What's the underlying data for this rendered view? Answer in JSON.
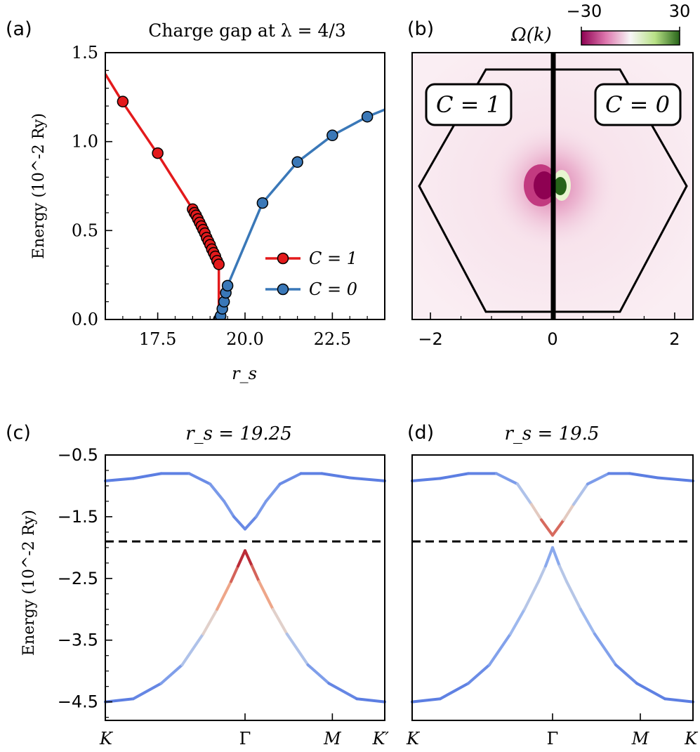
{
  "figure": {
    "panel_labels": [
      "(a)",
      "(b)",
      "(c)",
      "(d)"
    ]
  },
  "chart_data": [
    {
      "panel": "(a)",
      "type": "line",
      "title": "Charge gap at λ = 4/3",
      "xlabel": "r_s",
      "ylabel": "Energy (10^-2 Ry)",
      "xlim": [
        16.0,
        24.0
      ],
      "ylim": [
        0.0,
        1.5
      ],
      "xticks": [
        "17.5",
        "20.0",
        "22.5"
      ],
      "xtick_values": [
        17.5,
        20.0,
        22.5
      ],
      "yticks": [
        "0.0",
        "0.5",
        "1.0",
        "1.5"
      ],
      "ytick_values": [
        0.0,
        0.5,
        1.0,
        1.5
      ],
      "legend": {
        "placement": "lower-right",
        "entries": [
          "C = 1",
          "C = 0"
        ]
      },
      "series": [
        {
          "name": "C = 1",
          "color": "#e31a1c",
          "line_x": [
            16.0,
            16.5,
            17.5,
            18.5,
            19.2,
            19.25,
            19.25
          ],
          "line_y": [
            1.38,
            1.22,
            0.93,
            0.62,
            0.31,
            0.29,
            0.0
          ],
          "points_x": [
            16.5,
            17.5,
            18.5,
            18.55,
            18.6,
            18.65,
            18.7,
            18.75,
            18.8,
            18.85,
            18.9,
            18.95,
            19.0,
            19.05,
            19.1,
            19.15,
            19.2,
            19.25
          ],
          "points_y": [
            1.225,
            0.935,
            0.62,
            0.6,
            0.585,
            0.565,
            0.545,
            0.525,
            0.505,
            0.485,
            0.46,
            0.44,
            0.42,
            0.395,
            0.375,
            0.355,
            0.33,
            0.31
          ]
        },
        {
          "name": "C = 0",
          "color": "#3a78b8",
          "line_x": [
            19.25,
            19.3,
            19.35,
            19.4,
            19.45,
            19.5,
            20.5,
            21.5,
            22.5,
            23.5,
            24.0
          ],
          "line_y": [
            0.0,
            0.02,
            0.06,
            0.1,
            0.15,
            0.19,
            0.655,
            0.885,
            1.035,
            1.14,
            1.18
          ],
          "points_x": [
            19.25,
            19.27,
            19.3,
            19.35,
            19.4,
            19.45,
            19.5,
            20.5,
            21.5,
            22.5,
            23.5
          ],
          "points_y": [
            0.0,
            0.005,
            0.02,
            0.06,
            0.1,
            0.15,
            0.19,
            0.655,
            0.885,
            1.035,
            1.14
          ]
        }
      ]
    },
    {
      "panel": "(b)",
      "type": "heatmap",
      "quantity": "Ω(k)",
      "colorbar": {
        "min": -30,
        "max": 30,
        "ticks": [
          "−30",
          "30"
        ],
        "colormap": "PiYG"
      },
      "xlim": [
        -2.3,
        2.3
      ],
      "ylim": [
        -2.3,
        2.3
      ],
      "xticks": [
        "−2",
        "0",
        "2"
      ],
      "xtick_values": [
        -2,
        0,
        2
      ],
      "annotations": [
        "C = 1",
        "C = 0"
      ],
      "brillouin_zone": "hexagon",
      "divider": "vertical line at k_x = 0"
    },
    {
      "panel": "(c)",
      "type": "line",
      "title": "r_s = 19.25",
      "ylabel": "Energy (10^-2 Ry)",
      "ylim": [
        -4.8,
        -0.5
      ],
      "yticks": [
        "−0.5",
        "−1.5",
        "−2.5",
        "−3.5",
        "−4.5"
      ],
      "ytick_values": [
        -0.5,
        -1.5,
        -2.5,
        -3.5,
        -4.5
      ],
      "path_labels": [
        "K",
        "Γ",
        "M",
        "K′"
      ],
      "path_positions": [
        0.0,
        1.0,
        1.625,
        2.0
      ],
      "fermi_level": -1.9,
      "bands": [
        {
          "name": "conduction",
          "k": [
            0.0,
            0.2,
            0.4,
            0.6,
            0.75,
            0.85,
            0.92,
            1.0,
            1.08,
            1.15,
            1.25,
            1.4,
            1.55,
            1.75,
            2.0
          ],
          "E": [
            -0.92,
            -0.88,
            -0.8,
            -0.8,
            -0.97,
            -1.25,
            -1.5,
            -1.7,
            -1.5,
            -1.25,
            -0.97,
            -0.8,
            -0.8,
            -0.87,
            -0.92
          ],
          "color_values": [
            -1,
            -1,
            -1,
            -0.95,
            -0.8,
            -0.7,
            -0.8,
            -1,
            -0.8,
            -0.7,
            -0.8,
            -0.95,
            -1,
            -1,
            -1
          ]
        },
        {
          "name": "valence",
          "k": [
            0.0,
            0.2,
            0.4,
            0.55,
            0.7,
            0.8,
            0.9,
            0.95,
            1.0,
            1.05,
            1.1,
            1.2,
            1.3,
            1.45,
            1.6,
            1.8,
            2.0
          ],
          "E": [
            -4.5,
            -4.45,
            -4.2,
            -3.9,
            -3.4,
            -3.0,
            -2.55,
            -2.3,
            -2.05,
            -2.3,
            -2.55,
            -3.0,
            -3.4,
            -3.9,
            -4.2,
            -4.45,
            -4.5
          ],
          "color_values": [
            -1,
            -1,
            -0.85,
            -0.55,
            -0.1,
            0.3,
            0.6,
            0.85,
            1,
            0.85,
            0.6,
            0.3,
            -0.1,
            -0.55,
            -0.85,
            -1,
            -1
          ]
        }
      ]
    },
    {
      "panel": "(d)",
      "type": "line",
      "title": "r_s = 19.5",
      "ylim": [
        -4.8,
        -0.5
      ],
      "path_labels": [
        "K",
        "Γ",
        "M",
        "K"
      ],
      "path_positions": [
        0.0,
        1.0,
        1.625,
        2.0
      ],
      "fermi_level": -1.9,
      "bands": [
        {
          "name": "conduction",
          "k": [
            0.0,
            0.2,
            0.4,
            0.6,
            0.75,
            0.85,
            0.92,
            1.0,
            1.08,
            1.15,
            1.25,
            1.4,
            1.55,
            1.75,
            2.0
          ],
          "E": [
            -0.92,
            -0.88,
            -0.8,
            -0.8,
            -0.97,
            -1.3,
            -1.55,
            -1.8,
            -1.55,
            -1.3,
            -0.97,
            -0.8,
            -0.8,
            -0.87,
            -0.92
          ],
          "color_values": [
            -1,
            -1,
            -1,
            -0.9,
            -0.55,
            -0.1,
            0.4,
            1,
            0.4,
            -0.1,
            -0.55,
            -0.9,
            -1,
            -1,
            -1
          ]
        },
        {
          "name": "valence",
          "k": [
            0.0,
            0.2,
            0.4,
            0.55,
            0.7,
            0.8,
            0.9,
            0.95,
            1.0,
            1.05,
            1.1,
            1.2,
            1.3,
            1.45,
            1.6,
            1.8,
            2.0
          ],
          "E": [
            -4.5,
            -4.45,
            -4.2,
            -3.9,
            -3.4,
            -3.0,
            -2.55,
            -2.3,
            -2.0,
            -2.3,
            -2.55,
            -3.0,
            -3.4,
            -3.9,
            -4.2,
            -4.45,
            -4.5
          ],
          "color_values": [
            -1,
            -1,
            -0.95,
            -0.8,
            -0.55,
            -0.35,
            -0.2,
            -0.35,
            -0.85,
            -0.35,
            -0.2,
            -0.35,
            -0.55,
            -0.8,
            -0.95,
            -1,
            -1
          ]
        }
      ]
    }
  ]
}
